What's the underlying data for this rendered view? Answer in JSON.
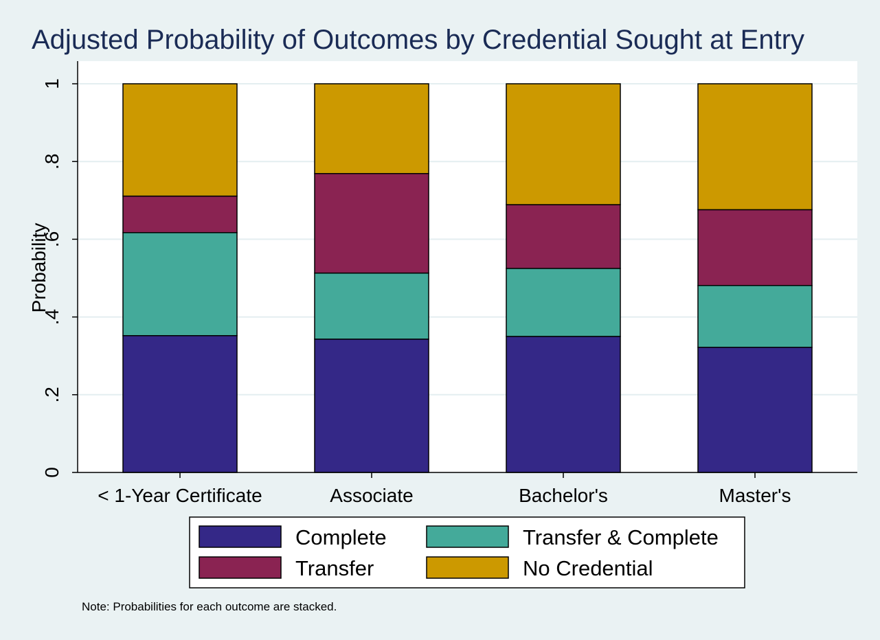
{
  "chart_data": {
    "type": "bar",
    "stacked": true,
    "title": "Adjusted Probability of Outcomes by Credential Sought at Entry",
    "ylabel": "Probability",
    "xlabel": "",
    "ylim": [
      0,
      1
    ],
    "yticks": [
      {
        "value": 0,
        "label": "0"
      },
      {
        "value": 0.2,
        "label": ".2"
      },
      {
        "value": 0.4,
        "label": ".4"
      },
      {
        "value": 0.6,
        "label": ".6"
      },
      {
        "value": 0.8,
        "label": ".8"
      },
      {
        "value": 1,
        "label": "1"
      }
    ],
    "grid": true,
    "legend_position": "bottom",
    "categories": [
      "< 1-Year Certificate",
      "Associate",
      "Bachelor's",
      "Master's"
    ],
    "series": [
      {
        "name": "Complete",
        "color": "#342887",
        "values": [
          0.352,
          0.343,
          0.35,
          0.322
        ]
      },
      {
        "name": "Transfer & Complete",
        "color": "#44aa9a",
        "values": [
          0.265,
          0.17,
          0.175,
          0.159
        ]
      },
      {
        "name": "Transfer",
        "color": "#8a2352",
        "values": [
          0.094,
          0.256,
          0.164,
          0.195
        ]
      },
      {
        "name": "No Credential",
        "color": "#cc9900",
        "values": [
          0.289,
          0.231,
          0.311,
          0.324
        ]
      }
    ],
    "note": "Note: Probabilities for each outcome are stacked."
  }
}
